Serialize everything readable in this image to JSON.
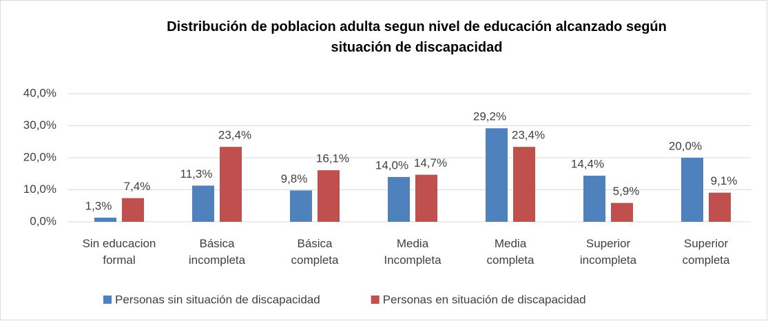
{
  "chart_data": {
    "type": "bar",
    "title": "Distribución de poblacion adulta segun nivel de educación alcanzado según\nsituación de discapacidad",
    "categories": [
      "Sin educacion\nformal",
      "Básica\nincompleta",
      "Básica\ncompleta",
      "Media\nIncompleta",
      "Media\ncompleta",
      "Superior\nincompleta",
      "Superior\ncompleta"
    ],
    "series": [
      {
        "name": "Personas sin situación de discapacidad",
        "color": "#4f81bd",
        "values": [
          1.3,
          11.3,
          9.8,
          14.0,
          29.2,
          14.4,
          20.0
        ],
        "value_labels": [
          "1,3%",
          "11,3%",
          "9,8%",
          "14,0%",
          "29,2%",
          "14,4%",
          "20,0%"
        ]
      },
      {
        "name": "Personas en situación de discapacidad",
        "color": "#c0504d",
        "values": [
          7.4,
          23.4,
          16.1,
          14.7,
          23.4,
          5.9,
          9.1
        ],
        "value_labels": [
          "7,4%",
          "23,4%",
          "16,1%",
          "14,7%",
          "23,4%",
          "5,9%",
          "9,1%"
        ]
      }
    ],
    "ylim": [
      0,
      40
    ],
    "yticks": [
      {
        "value": 0,
        "label": "0,0%"
      },
      {
        "value": 10,
        "label": "10,0%"
      },
      {
        "value": 20,
        "label": "20,0%"
      },
      {
        "value": 30,
        "label": "30,0%"
      },
      {
        "value": 40,
        "label": "40,0%"
      }
    ],
    "grid": true,
    "legend": "bottom"
  }
}
